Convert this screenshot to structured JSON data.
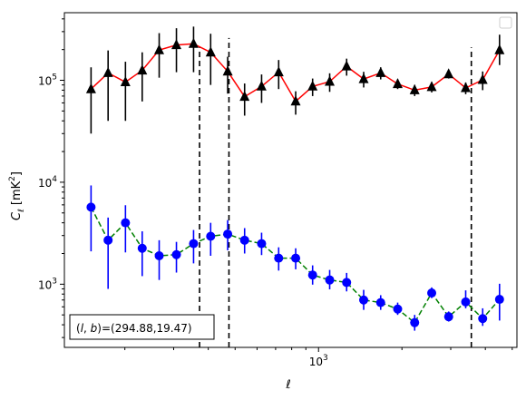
{
  "chart_data": {
    "type": "line",
    "xlabel": "ℓ",
    "ylabel": "C_ℓ [mK²]",
    "xscale": "log",
    "yscale": "log",
    "xlim": [
      121,
      5200
    ],
    "ylim": [
      240,
      460000
    ],
    "x_tick_labels": [
      {
        "value": 1000,
        "text": "10^3"
      }
    ],
    "y_tick_labels": [
      {
        "value": 1000,
        "text": "10^3"
      },
      {
        "value": 10000,
        "text": "10^4"
      },
      {
        "value": 100000,
        "text": "10^5"
      }
    ],
    "grid": false,
    "legend": "upper-right (empty)",
    "annotation": "(l, b)=(294.88,19.47)",
    "vlines": [
      {
        "x": 372,
        "ymax": 210000
      },
      {
        "x": 475,
        "ymax": 260000
      },
      {
        "x": 3560,
        "ymax": 210000
      }
    ],
    "x": [
      151,
      174,
      201,
      231,
      266,
      307,
      354,
      408,
      470,
      541,
      623,
      718,
      827,
      952,
      1097,
      1263,
      1455,
      1676,
      1930,
      2223,
      2561,
      2949,
      3397,
      3912,
      4500
    ],
    "series": [
      {
        "color": "#000000",
        "line_color": "#ff0000",
        "marker": "triangle",
        "linestyle": "solid",
        "values": [
          82000,
          118000,
          96000,
          125000,
          198000,
          222000,
          228000,
          188000,
          122000,
          69000,
          87000,
          120000,
          62000,
          87000,
          97000,
          137000,
          103000,
          118000,
          92000,
          80000,
          86000,
          115000,
          84000,
          101000,
          198000
        ],
        "err_low": [
          52000,
          78000,
          56000,
          63000,
          92000,
          102000,
          108000,
          98000,
          48000,
          24000,
          27000,
          38000,
          16000,
          17000,
          20000,
          26000,
          18000,
          16000,
          10000,
          10000,
          10000,
          11000,
          11000,
          21000,
          57000
        ],
        "err_high": [
          52000,
          78000,
          56000,
          63000,
          92000,
          102000,
          108000,
          98000,
          48000,
          24000,
          27000,
          38000,
          16000,
          17000,
          20000,
          26000,
          18000,
          16000,
          10000,
          10000,
          10000,
          11000,
          11000,
          21000,
          82000
        ]
      },
      {
        "color": "#0000ff",
        "line_color": "#008000",
        "marker": "circle",
        "linestyle": "dashed",
        "values": [
          5700,
          2700,
          4000,
          2250,
          1900,
          1950,
          2500,
          2950,
          3100,
          2700,
          2500,
          1800,
          1800,
          1230,
          1100,
          1040,
          700,
          660,
          570,
          420,
          820,
          480,
          670,
          460,
          710
        ],
        "err_low": [
          3600,
          1800,
          1950,
          1050,
          800,
          650,
          900,
          1050,
          950,
          700,
          570,
          440,
          400,
          240,
          210,
          190,
          140,
          100,
          70,
          70,
          90,
          50,
          90,
          70,
          270
        ],
        "err_high": [
          3600,
          1800,
          1950,
          1050,
          800,
          650,
          900,
          1050,
          1150,
          850,
          700,
          500,
          450,
          300,
          280,
          250,
          180,
          120,
          90,
          80,
          110,
          60,
          200,
          120,
          300
        ]
      }
    ]
  }
}
